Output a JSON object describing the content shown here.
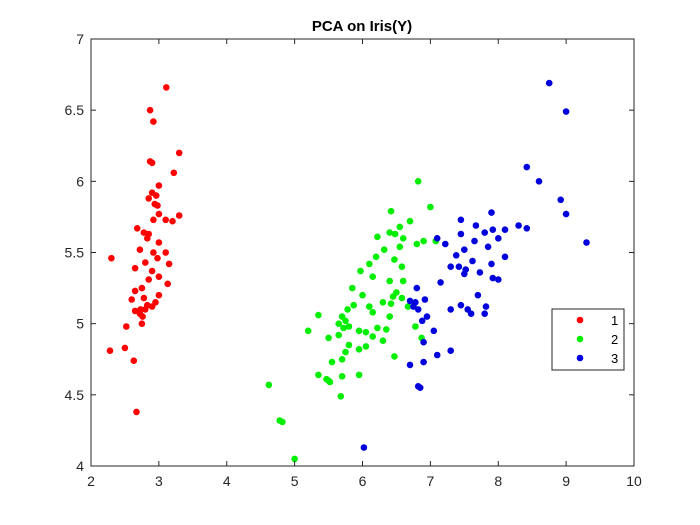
{
  "chart_data": {
    "type": "scatter",
    "title": "PCA on Iris(Y)",
    "xlabel": "",
    "ylabel": "",
    "xlim": [
      2,
      10
    ],
    "ylim": [
      4,
      7
    ],
    "xticks": [
      2,
      3,
      4,
      5,
      6,
      7,
      8,
      9,
      10
    ],
    "yticks": [
      4,
      4.5,
      5,
      5.5,
      6,
      6.5,
      7
    ],
    "grid": false,
    "legend_position": "right",
    "series": [
      {
        "name": "1",
        "color": "#ff0000",
        "points": [
          [
            3.11,
            6.66
          ],
          [
            2.87,
            6.5
          ],
          [
            2.92,
            6.42
          ],
          [
            3.3,
            6.2
          ],
          [
            2.87,
            6.14
          ],
          [
            2.9,
            6.13
          ],
          [
            3.22,
            6.06
          ],
          [
            3.0,
            5.97
          ],
          [
            2.9,
            5.92
          ],
          [
            2.96,
            5.9
          ],
          [
            2.85,
            5.88
          ],
          [
            2.94,
            5.84
          ],
          [
            2.98,
            5.83
          ],
          [
            3.0,
            5.77
          ],
          [
            2.92,
            5.73
          ],
          [
            3.1,
            5.73
          ],
          [
            3.2,
            5.72
          ],
          [
            3.3,
            5.76
          ],
          [
            2.68,
            5.67
          ],
          [
            2.78,
            5.64
          ],
          [
            2.85,
            5.63
          ],
          [
            2.83,
            5.6
          ],
          [
            3.0,
            5.57
          ],
          [
            2.72,
            5.52
          ],
          [
            2.92,
            5.5
          ],
          [
            3.1,
            5.5
          ],
          [
            2.3,
            5.46
          ],
          [
            2.98,
            5.46
          ],
          [
            2.8,
            5.43
          ],
          [
            3.15,
            5.42
          ],
          [
            2.65,
            5.39
          ],
          [
            2.9,
            5.37
          ],
          [
            3.0,
            5.33
          ],
          [
            2.85,
            5.31
          ],
          [
            3.13,
            5.28
          ],
          [
            2.75,
            5.25
          ],
          [
            2.65,
            5.23
          ],
          [
            3.0,
            5.2
          ],
          [
            2.78,
            5.18
          ],
          [
            2.6,
            5.17
          ],
          [
            2.95,
            5.15
          ],
          [
            2.83,
            5.13
          ],
          [
            2.9,
            5.12
          ],
          [
            2.73,
            5.1
          ],
          [
            2.8,
            5.1
          ],
          [
            2.65,
            5.09
          ],
          [
            2.72,
            5.07
          ],
          [
            2.76,
            5.05
          ],
          [
            2.75,
            5.0
          ],
          [
            2.52,
            4.98
          ],
          [
            2.5,
            4.83
          ],
          [
            2.28,
            4.81
          ],
          [
            2.63,
            4.74
          ],
          [
            2.67,
            4.38
          ]
        ]
      },
      {
        "name": "2",
        "color": "#00ee00",
        "points": [
          [
            6.82,
            6.0
          ],
          [
            7.0,
            5.82
          ],
          [
            6.42,
            5.79
          ],
          [
            6.7,
            5.72
          ],
          [
            6.55,
            5.68
          ],
          [
            6.4,
            5.64
          ],
          [
            6.48,
            5.63
          ],
          [
            6.22,
            5.61
          ],
          [
            6.6,
            5.6
          ],
          [
            6.9,
            5.58
          ],
          [
            7.08,
            5.58
          ],
          [
            6.8,
            5.56
          ],
          [
            6.55,
            5.54
          ],
          [
            6.32,
            5.52
          ],
          [
            6.2,
            5.47
          ],
          [
            6.47,
            5.45
          ],
          [
            6.1,
            5.42
          ],
          [
            6.58,
            5.4
          ],
          [
            5.97,
            5.37
          ],
          [
            6.15,
            5.33
          ],
          [
            6.4,
            5.3
          ],
          [
            6.6,
            5.3
          ],
          [
            5.85,
            5.25
          ],
          [
            6.5,
            5.22
          ],
          [
            6.0,
            5.2
          ],
          [
            6.45,
            5.19
          ],
          [
            6.58,
            5.18
          ],
          [
            6.3,
            5.15
          ],
          [
            6.42,
            5.14
          ],
          [
            5.87,
            5.13
          ],
          [
            6.1,
            5.12
          ],
          [
            6.67,
            5.12
          ],
          [
            5.78,
            5.1
          ],
          [
            6.15,
            5.08
          ],
          [
            5.35,
            5.06
          ],
          [
            5.7,
            5.05
          ],
          [
            6.4,
            5.05
          ],
          [
            5.75,
            5.02
          ],
          [
            5.65,
            5.0
          ],
          [
            5.8,
            4.98
          ],
          [
            5.72,
            4.97
          ],
          [
            6.78,
            4.98
          ],
          [
            5.2,
            4.95
          ],
          [
            5.95,
            4.95
          ],
          [
            6.22,
            4.97
          ],
          [
            6.35,
            4.96
          ],
          [
            6.05,
            4.94
          ],
          [
            5.65,
            4.92
          ],
          [
            6.15,
            4.91
          ],
          [
            5.5,
            4.9
          ],
          [
            6.87,
            4.9
          ],
          [
            6.3,
            4.88
          ],
          [
            5.8,
            4.85
          ],
          [
            6.05,
            4.84
          ],
          [
            5.95,
            4.82
          ],
          [
            5.75,
            4.8
          ],
          [
            6.47,
            4.77
          ],
          [
            5.7,
            4.75
          ],
          [
            5.55,
            4.73
          ],
          [
            5.35,
            4.64
          ],
          [
            5.47,
            4.61
          ],
          [
            5.5,
            4.6
          ],
          [
            5.95,
            4.64
          ],
          [
            5.7,
            4.63
          ],
          [
            5.52,
            4.59
          ],
          [
            4.62,
            4.57
          ],
          [
            5.68,
            4.49
          ],
          [
            4.78,
            4.32
          ],
          [
            4.82,
            4.31
          ],
          [
            5.0,
            4.05
          ]
        ]
      },
      {
        "name": "3",
        "color": "#0000dd",
        "points": [
          [
            8.75,
            6.69
          ],
          [
            9.0,
            6.49
          ],
          [
            8.42,
            6.1
          ],
          [
            8.6,
            6.0
          ],
          [
            8.92,
            5.87
          ],
          [
            7.9,
            5.78
          ],
          [
            9.0,
            5.77
          ],
          [
            7.45,
            5.73
          ],
          [
            7.67,
            5.69
          ],
          [
            8.3,
            5.69
          ],
          [
            8.1,
            5.66
          ],
          [
            8.42,
            5.67
          ],
          [
            7.92,
            5.66
          ],
          [
            7.8,
            5.64
          ],
          [
            7.45,
            5.63
          ],
          [
            7.1,
            5.6
          ],
          [
            9.3,
            5.57
          ],
          [
            7.65,
            5.58
          ],
          [
            8.0,
            5.6
          ],
          [
            7.22,
            5.56
          ],
          [
            7.85,
            5.54
          ],
          [
            7.5,
            5.52
          ],
          [
            7.38,
            5.48
          ],
          [
            8.1,
            5.47
          ],
          [
            7.62,
            5.44
          ],
          [
            7.3,
            5.4
          ],
          [
            7.42,
            5.4
          ],
          [
            7.9,
            5.42
          ],
          [
            7.52,
            5.38
          ],
          [
            7.73,
            5.36
          ],
          [
            7.5,
            5.35
          ],
          [
            7.92,
            5.32
          ],
          [
            8.0,
            5.31
          ],
          [
            7.15,
            5.29
          ],
          [
            6.8,
            5.25
          ],
          [
            7.7,
            5.2
          ],
          [
            6.7,
            5.16
          ],
          [
            6.78,
            5.15
          ],
          [
            6.92,
            5.17
          ],
          [
            6.75,
            5.12
          ],
          [
            7.45,
            5.13
          ],
          [
            7.82,
            5.12
          ],
          [
            6.82,
            5.1
          ],
          [
            7.3,
            5.1
          ],
          [
            7.55,
            5.1
          ],
          [
            7.6,
            5.07
          ],
          [
            6.95,
            5.05
          ],
          [
            7.8,
            5.07
          ],
          [
            6.88,
            5.02
          ],
          [
            7.05,
            4.95
          ],
          [
            6.9,
            4.87
          ],
          [
            7.3,
            4.81
          ],
          [
            7.1,
            4.78
          ],
          [
            6.9,
            4.73
          ],
          [
            6.7,
            4.71
          ],
          [
            6.82,
            4.56
          ],
          [
            6.85,
            4.55
          ],
          [
            6.02,
            4.13
          ]
        ]
      }
    ]
  }
}
